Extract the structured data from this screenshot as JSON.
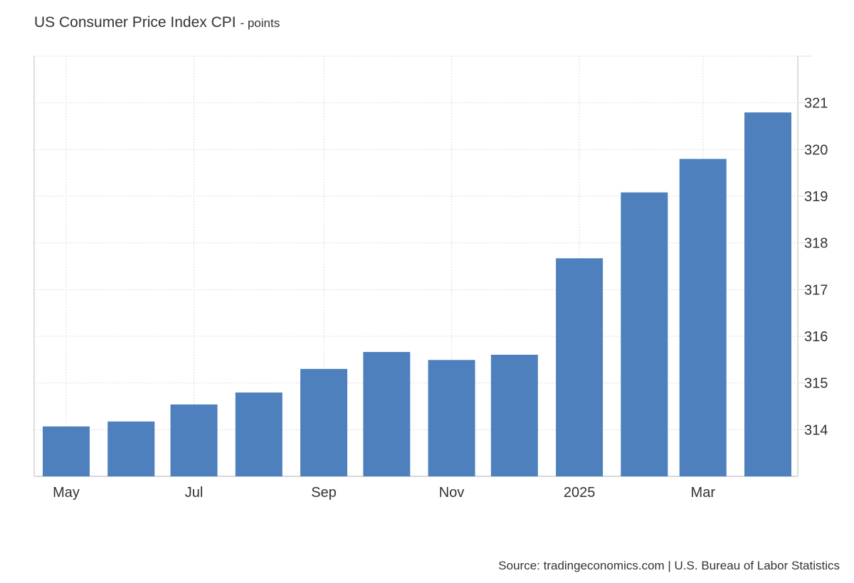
{
  "title": "US Consumer Price Index CPI",
  "unit_suffix": "- points",
  "source": "Source: tradingeconomics.com | U.S. Bureau of Labor Statistics",
  "chart_data": {
    "type": "bar",
    "title": "US Consumer Price Index CPI",
    "x": [
      "2024-05",
      "2024-06",
      "2024-07",
      "2024-08",
      "2024-09",
      "2024-10",
      "2024-11",
      "2024-12",
      "2025-01",
      "2025-02",
      "2025-03",
      "2025-04"
    ],
    "values": [
      314.069,
      314.175,
      314.54,
      314.796,
      315.301,
      315.664,
      315.493,
      315.605,
      317.671,
      319.082,
      319.799,
      320.795
    ],
    "x_ticks": [
      {
        "date": "2024-05",
        "label": "May"
      },
      {
        "date": "2024-07",
        "label": "Jul"
      },
      {
        "date": "2024-09",
        "label": "Sep"
      },
      {
        "date": "2024-11",
        "label": "Nov"
      },
      {
        "date": "2025-01",
        "label": "2025"
      },
      {
        "date": "2025-03",
        "label": "Mar"
      }
    ],
    "y_ticks": [
      314,
      315,
      316,
      317,
      318,
      319,
      320,
      321
    ],
    "ylim": [
      313,
      322
    ],
    "y_axis_side": "right",
    "grid": true,
    "bar_color": "#4d80bc",
    "xlabel": "",
    "ylabel": ""
  }
}
